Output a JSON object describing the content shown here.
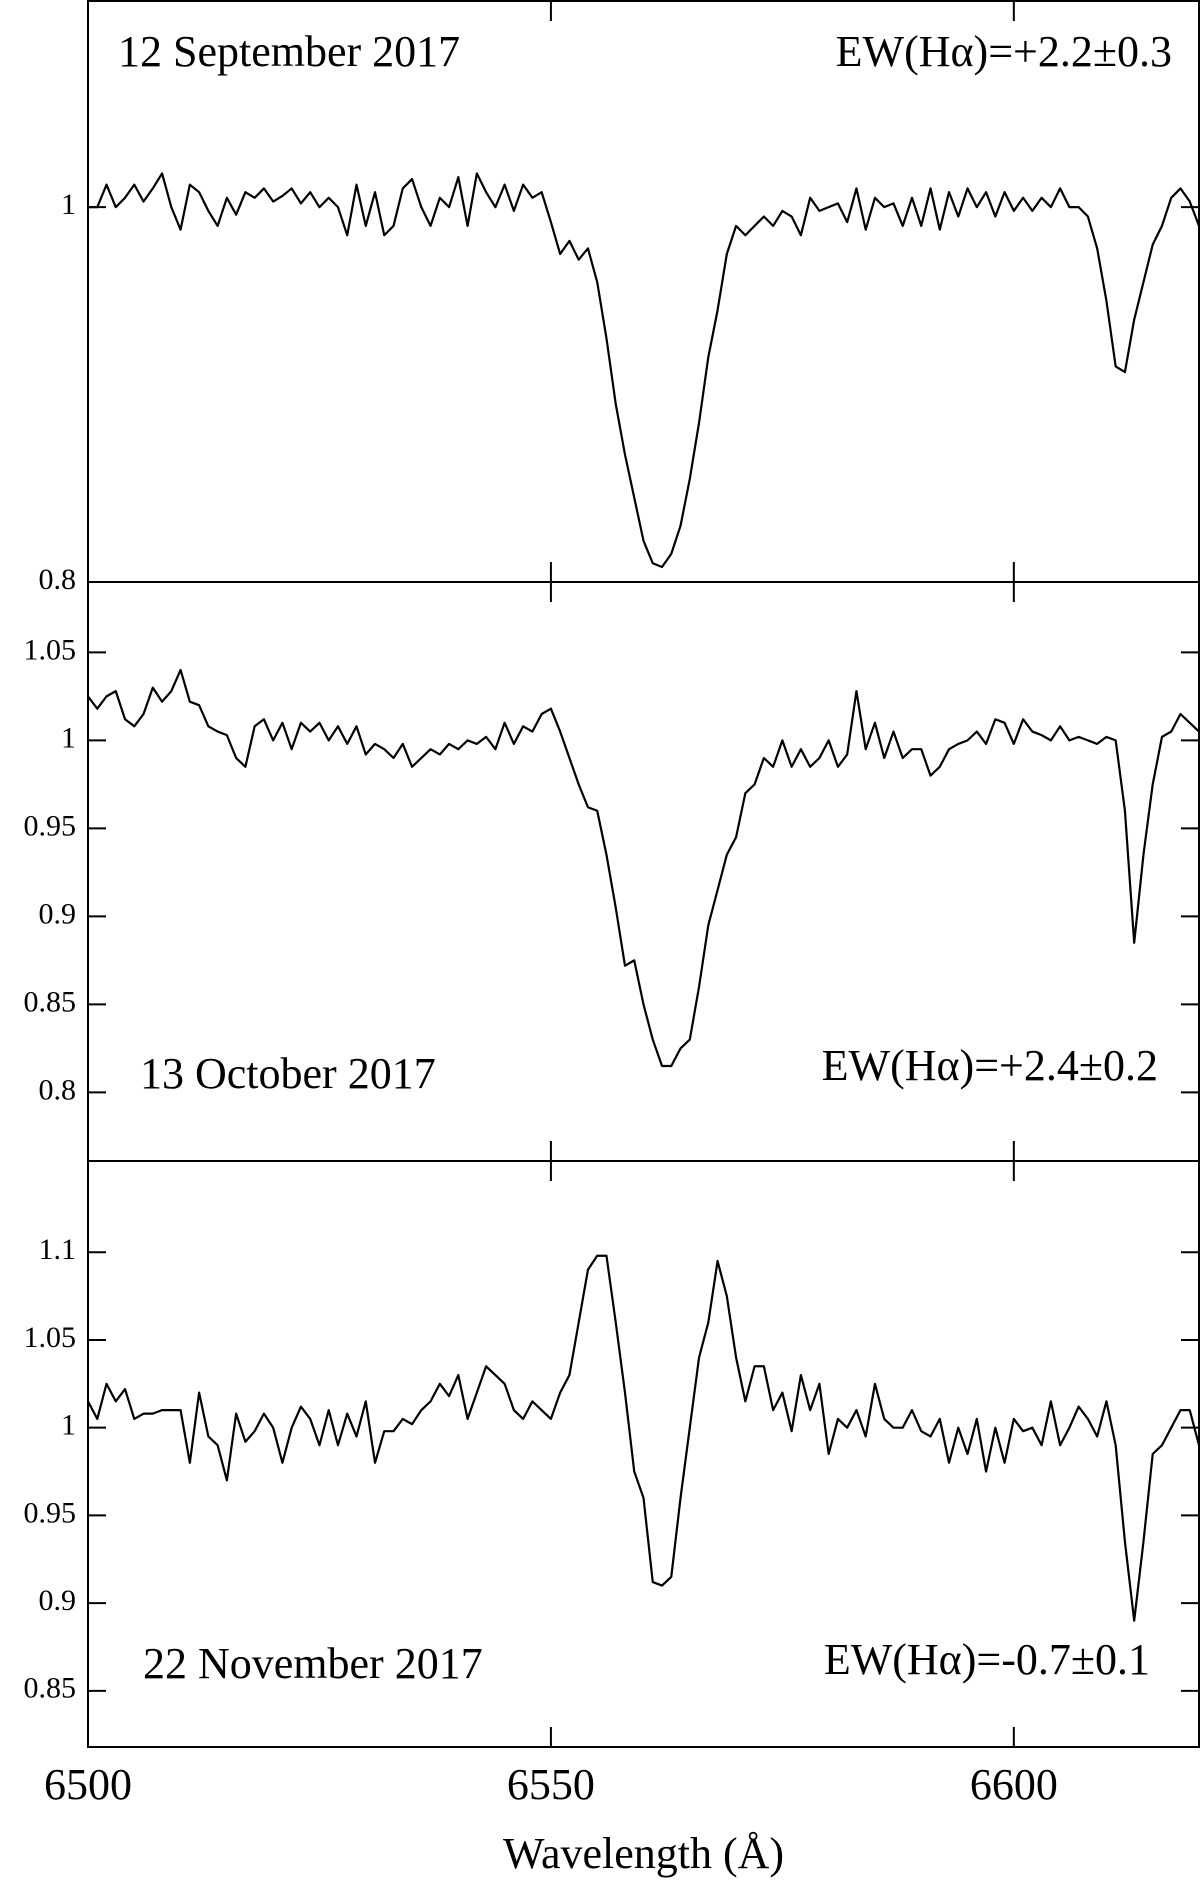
{
  "chart_data": [
    {
      "type": "line",
      "annotations": [
        "12 September 2017",
        "EW(Hα)=+2.2±0.3"
      ],
      "color": "#000000",
      "xlim": [
        6500,
        6620
      ],
      "xticks": [
        6500,
        6550,
        6600
      ],
      "ylim": [
        0.8,
        1.11
      ],
      "yticks": [
        0.8,
        1
      ],
      "x": [
        6500,
        6501,
        6502,
        6503,
        6504,
        6505,
        6506,
        6507,
        6508,
        6509,
        6510,
        6511,
        6512,
        6513,
        6514,
        6515,
        6516,
        6517,
        6518,
        6519,
        6520,
        6521,
        6522,
        6523,
        6524,
        6525,
        6526,
        6527,
        6528,
        6529,
        6530,
        6531,
        6532,
        6533,
        6534,
        6535,
        6536,
        6537,
        6538,
        6539,
        6540,
        6541,
        6542,
        6543,
        6544,
        6545,
        6546,
        6547,
        6548,
        6549,
        6550,
        6551,
        6552,
        6553,
        6554,
        6555,
        6556,
        6557,
        6558,
        6559,
        6560,
        6561,
        6562,
        6563,
        6564,
        6565,
        6566,
        6567,
        6568,
        6569,
        6570,
        6571,
        6572,
        6573,
        6574,
        6575,
        6576,
        6577,
        6578,
        6579,
        6580,
        6581,
        6582,
        6583,
        6584,
        6585,
        6586,
        6587,
        6588,
        6589,
        6590,
        6591,
        6592,
        6593,
        6594,
        6595,
        6596,
        6597,
        6598,
        6599,
        6600,
        6601,
        6602,
        6603,
        6604,
        6605,
        6606,
        6607,
        6608,
        6609,
        6610,
        6611,
        6612,
        6613,
        6614,
        6615,
        6616,
        6617,
        6618,
        6619,
        6620
      ],
      "values": [
        1.0,
        1.0,
        1.012,
        1.0,
        1.005,
        1.012,
        1.003,
        1.01,
        1.018,
        1.0,
        0.988,
        1.012,
        1.008,
        0.998,
        0.99,
        1.005,
        0.996,
        1.008,
        1.005,
        1.01,
        1.003,
        1.006,
        1.01,
        1.002,
        1.008,
        1.0,
        1.005,
        1.0,
        0.985,
        1.012,
        0.99,
        1.008,
        0.985,
        0.99,
        1.01,
        1.015,
        1.0,
        0.99,
        1.005,
        1.0,
        1.016,
        0.99,
        1.018,
        1.008,
        1.0,
        1.012,
        0.998,
        1.012,
        1.005,
        1.008,
        0.992,
        0.975,
        0.982,
        0.972,
        0.978,
        0.96,
        0.93,
        0.895,
        0.868,
        0.845,
        0.822,
        0.81,
        0.808,
        0.815,
        0.83,
        0.855,
        0.885,
        0.92,
        0.945,
        0.975,
        0.99,
        0.985,
        0.99,
        0.995,
        0.99,
        0.998,
        0.995,
        0.985,
        1.005,
        0.998,
        1.0,
        1.002,
        0.992,
        1.01,
        0.988,
        1.005,
        1.0,
        1.002,
        0.99,
        1.005,
        0.99,
        1.01,
        0.988,
        1.008,
        0.995,
        1.01,
        1.0,
        1.008,
        0.995,
        1.008,
        0.998,
        1.005,
        0.998,
        1.005,
        1.0,
        1.01,
        1.0,
        1.0,
        0.995,
        0.978,
        0.95,
        0.915,
        0.912,
        0.94,
        0.96,
        0.98,
        0.99,
        1.005,
        1.01,
        1.003,
        0.99
      ]
    },
    {
      "type": "line",
      "annotations": [
        "13 October 2017",
        "EW(Hα)=+2.4±0.2"
      ],
      "color": "#000000",
      "xlim": [
        6500,
        6620
      ],
      "xticks": [
        6500,
        6550,
        6600
      ],
      "ylim": [
        0.761,
        1.09
      ],
      "yticks": [
        0.8,
        0.85,
        0.9,
        0.95,
        1,
        1.05
      ],
      "x": [
        6500,
        6501,
        6502,
        6503,
        6504,
        6505,
        6506,
        6507,
        6508,
        6509,
        6510,
        6511,
        6512,
        6513,
        6514,
        6515,
        6516,
        6517,
        6518,
        6519,
        6520,
        6521,
        6522,
        6523,
        6524,
        6525,
        6526,
        6527,
        6528,
        6529,
        6530,
        6531,
        6532,
        6533,
        6534,
        6535,
        6536,
        6537,
        6538,
        6539,
        6540,
        6541,
        6542,
        6543,
        6544,
        6545,
        6546,
        6547,
        6548,
        6549,
        6550,
        6551,
        6552,
        6553,
        6554,
        6555,
        6556,
        6557,
        6558,
        6559,
        6560,
        6561,
        6562,
        6563,
        6564,
        6565,
        6566,
        6567,
        6568,
        6569,
        6570,
        6571,
        6572,
        6573,
        6574,
        6575,
        6576,
        6577,
        6578,
        6579,
        6580,
        6581,
        6582,
        6583,
        6584,
        6585,
        6586,
        6587,
        6588,
        6589,
        6590,
        6591,
        6592,
        6593,
        6594,
        6595,
        6596,
        6597,
        6598,
        6599,
        6600,
        6601,
        6602,
        6603,
        6604,
        6605,
        6606,
        6607,
        6608,
        6609,
        6610,
        6611,
        6612,
        6613,
        6614,
        6615,
        6616,
        6617,
        6618,
        6619,
        6620
      ],
      "values": [
        1.025,
        1.018,
        1.025,
        1.028,
        1.012,
        1.008,
        1.015,
        1.03,
        1.022,
        1.028,
        1.04,
        1.022,
        1.02,
        1.008,
        1.005,
        1.003,
        0.99,
        0.985,
        1.008,
        1.012,
        1.0,
        1.01,
        0.995,
        1.01,
        1.005,
        1.01,
        1.0,
        1.008,
        0.998,
        1.008,
        0.992,
        0.998,
        0.995,
        0.99,
        0.998,
        0.985,
        0.99,
        0.995,
        0.992,
        0.998,
        0.995,
        1.0,
        0.998,
        1.002,
        0.995,
        1.01,
        0.998,
        1.008,
        1.005,
        1.015,
        1.018,
        1.005,
        0.99,
        0.975,
        0.962,
        0.96,
        0.935,
        0.905,
        0.872,
        0.875,
        0.85,
        0.83,
        0.815,
        0.815,
        0.825,
        0.83,
        0.86,
        0.895,
        0.915,
        0.935,
        0.945,
        0.97,
        0.975,
        0.99,
        0.985,
        1.0,
        0.985,
        0.995,
        0.985,
        0.99,
        1.0,
        0.985,
        0.992,
        1.028,
        0.995,
        1.01,
        0.99,
        1.005,
        0.99,
        0.995,
        0.995,
        0.98,
        0.985,
        0.995,
        0.998,
        1.0,
        1.005,
        0.998,
        1.012,
        1.01,
        0.998,
        1.012,
        1.005,
        1.003,
        1.0,
        1.008,
        1.0,
        1.002,
        1.0,
        0.998,
        1.002,
        1.0,
        0.96,
        0.885,
        0.935,
        0.975,
        1.002,
        1.005,
        1.015,
        1.01,
        1.005
      ]
    },
    {
      "type": "line",
      "annotations": [
        "22 November 2017",
        "EW(Hα)=-0.7±0.1"
      ],
      "color": "#000000",
      "x_label": "Wavelength (Å)",
      "xlim": [
        6500,
        6620
      ],
      "xticks": [
        6500,
        6550,
        6600
      ],
      "ylim": [
        0.818,
        1.152
      ],
      "yticks": [
        0.85,
        0.9,
        0.95,
        1,
        1.05,
        1.1
      ],
      "x": [
        6500,
        6501,
        6502,
        6503,
        6504,
        6505,
        6506,
        6507,
        6508,
        6509,
        6510,
        6511,
        6512,
        6513,
        6514,
        6515,
        6516,
        6517,
        6518,
        6519,
        6520,
        6521,
        6522,
        6523,
        6524,
        6525,
        6526,
        6527,
        6528,
        6529,
        6530,
        6531,
        6532,
        6533,
        6534,
        6535,
        6536,
        6537,
        6538,
        6539,
        6540,
        6541,
        6542,
        6543,
        6544,
        6545,
        6546,
        6547,
        6548,
        6549,
        6550,
        6551,
        6552,
        6553,
        6554,
        6555,
        6556,
        6557,
        6558,
        6559,
        6560,
        6561,
        6562,
        6563,
        6564,
        6565,
        6566,
        6567,
        6568,
        6569,
        6570,
        6571,
        6572,
        6573,
        6574,
        6575,
        6576,
        6577,
        6578,
        6579,
        6580,
        6581,
        6582,
        6583,
        6584,
        6585,
        6586,
        6587,
        6588,
        6589,
        6590,
        6591,
        6592,
        6593,
        6594,
        6595,
        6596,
        6597,
        6598,
        6599,
        6600,
        6601,
        6602,
        6603,
        6604,
        6605,
        6606,
        6607,
        6608,
        6609,
        6610,
        6611,
        6612,
        6613,
        6614,
        6615,
        6616,
        6617,
        6618,
        6619,
        6620
      ],
      "values": [
        1.015,
        1.005,
        1.025,
        1.015,
        1.022,
        1.005,
        1.008,
        1.008,
        1.01,
        1.01,
        1.01,
        0.98,
        1.02,
        0.995,
        0.99,
        0.97,
        1.008,
        0.992,
        0.998,
        1.008,
        1.0,
        0.98,
        1.0,
        1.012,
        1.005,
        0.99,
        1.01,
        0.99,
        1.008,
        0.995,
        1.015,
        0.98,
        0.998,
        0.998,
        1.005,
        1.002,
        1.01,
        1.015,
        1.025,
        1.018,
        1.03,
        1.005,
        1.02,
        1.035,
        1.03,
        1.025,
        1.01,
        1.005,
        1.015,
        1.01,
        1.005,
        1.02,
        1.03,
        1.06,
        1.09,
        1.098,
        1.098,
        1.06,
        1.02,
        0.975,
        0.96,
        0.912,
        0.91,
        0.915,
        0.96,
        1.0,
        1.04,
        1.06,
        1.095,
        1.075,
        1.04,
        1.015,
        1.035,
        1.035,
        1.01,
        1.02,
        0.998,
        1.03,
        1.01,
        1.025,
        0.985,
        1.005,
        1.0,
        1.01,
        0.995,
        1.025,
        1.005,
        1.0,
        1.0,
        1.01,
        0.998,
        0.995,
        1.005,
        0.98,
        1.0,
        0.985,
        1.005,
        0.975,
        1.0,
        0.98,
        1.005,
        0.998,
        1.0,
        0.99,
        1.015,
        0.99,
        1.0,
        1.012,
        1.005,
        0.995,
        1.015,
        0.99,
        0.935,
        0.89,
        0.935,
        0.985,
        0.99,
        1.0,
        1.01,
        1.01,
        0.99
      ]
    }
  ]
}
